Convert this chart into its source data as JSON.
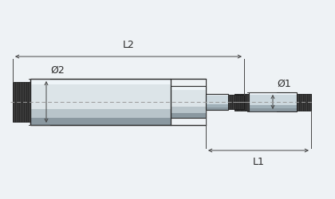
{
  "bg_color": "#eef2f5",
  "line_color": "#2a2a2a",
  "dim_color": "#444444",
  "body_fill_light": "#dce4e8",
  "body_fill_mid": "#b8c4ca",
  "body_fill_dark": "#8a98a0",
  "body_fill_shadow": "#6a7880",
  "rod_fill_light": "#ccd8de",
  "rod_fill_mid": "#a0b0b8",
  "thread_dark": "#1a1a1a",
  "thread_fill": "#3a3a3a",
  "center_line_color": "#999999",
  "highlight": "#eef4f8",
  "labels": {
    "L1": "L1",
    "L2": "L2",
    "D1": "Ø1",
    "D2": "Ø2"
  }
}
